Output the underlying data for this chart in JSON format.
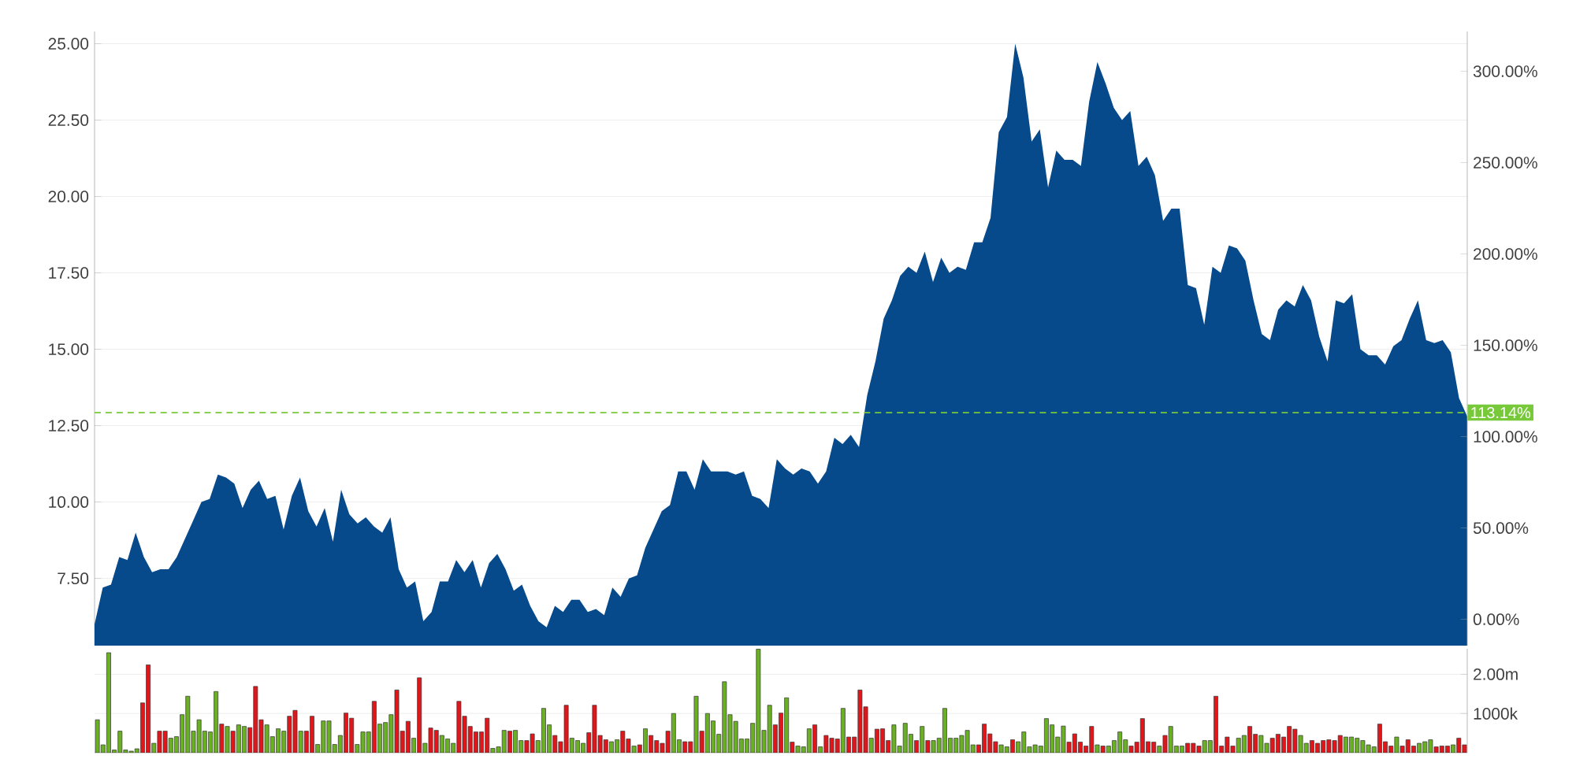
{
  "chart_data": [
    {
      "type": "area",
      "color": "#064a8c",
      "grid": "y",
      "categories": [
        null,
        null,
        null,
        null,
        null,
        null,
        null,
        null,
        null,
        null,
        null,
        null,
        null,
        null,
        null,
        null,
        null,
        null,
        null,
        null,
        null,
        null,
        null,
        null,
        null,
        null,
        null,
        null,
        null,
        null,
        null,
        null,
        null,
        null,
        null,
        null,
        null,
        null,
        null,
        null,
        null,
        null,
        null,
        null,
        null,
        null,
        null,
        null,
        null,
        null,
        null,
        null,
        null,
        null,
        null,
        null,
        null,
        null,
        null,
        null,
        null,
        null,
        null,
        null,
        null,
        null,
        null,
        null,
        null,
        null,
        null,
        null,
        null,
        null,
        null,
        null,
        null,
        null,
        null,
        null,
        null,
        null,
        null,
        null,
        null,
        null,
        null,
        null,
        null,
        null,
        null,
        null,
        null,
        null,
        null,
        null,
        null,
        null,
        null,
        null,
        null,
        null,
        null,
        null,
        null,
        null,
        null,
        null,
        null,
        null,
        null,
        null,
        null,
        null,
        null,
        null,
        null,
        null,
        null,
        null,
        null,
        null,
        null,
        null,
        null,
        null,
        null,
        null,
        null,
        null,
        null,
        null,
        null,
        null,
        null,
        null,
        null,
        null,
        null,
        null,
        null,
        null,
        null,
        null,
        null,
        null,
        null,
        null,
        null,
        null,
        null,
        null,
        null,
        null,
        null,
        null,
        null,
        null,
        null,
        null,
        null,
        null,
        null,
        null,
        null,
        null,
        null,
        null
      ],
      "values": [
        6.0,
        7.2,
        7.3,
        8.2,
        8.1,
        9.0,
        8.2,
        7.7,
        7.8,
        7.8,
        8.2,
        8.8,
        9.4,
        10.0,
        10.1,
        10.9,
        10.8,
        10.6,
        9.8,
        10.4,
        10.7,
        10.1,
        10.2,
        9.1,
        10.2,
        10.8,
        9.7,
        9.2,
        9.8,
        8.7,
        10.4,
        9.6,
        9.3,
        9.5,
        9.2,
        9.0,
        9.5,
        7.8,
        7.2,
        7.4,
        6.1,
        6.4,
        7.4,
        7.4,
        8.1,
        7.7,
        8.1,
        7.2,
        8.0,
        8.3,
        7.8,
        7.1,
        7.3,
        6.6,
        6.1,
        5.9,
        6.6,
        6.4,
        6.8,
        6.8,
        6.4,
        6.5,
        6.3,
        7.2,
        6.9,
        7.5,
        7.6,
        8.5,
        9.1,
        9.7,
        9.9,
        11.0,
        11.0,
        10.4,
        11.4,
        11.0,
        11.0,
        11.0,
        10.9,
        11.0,
        10.2,
        10.1,
        9.8,
        11.4,
        11.1,
        10.9,
        11.1,
        11.0,
        10.6,
        11.0,
        12.1,
        11.9,
        12.2,
        11.8,
        13.5,
        14.6,
        16.0,
        16.6,
        17.4,
        17.7,
        17.5,
        18.2,
        17.2,
        18.0,
        17.5,
        17.7,
        17.6,
        18.5,
        18.5,
        19.3,
        22.1,
        22.6,
        25.0,
        23.9,
        21.8,
        22.2,
        20.3,
        21.5,
        21.2,
        21.2,
        21.0,
        23.1,
        24.4,
        23.7,
        22.9,
        22.5,
        22.8,
        21.0,
        21.3,
        20.7,
        19.2,
        19.6,
        19.6,
        17.1,
        17.0,
        15.8,
        17.7,
        17.5,
        18.4,
        18.3,
        17.9,
        16.6,
        15.5,
        15.3,
        16.3,
        16.6,
        16.4,
        17.1,
        16.6,
        15.4,
        14.6,
        16.6,
        16.5,
        16.8,
        15.0,
        14.8,
        14.8,
        14.5,
        15.1,
        15.3,
        16.0,
        16.6,
        15.3,
        15.2,
        15.3,
        14.9,
        13.4,
        12.8
      ],
      "ylim": [
        5.3,
        25.4
      ],
      "yticks": [
        {
          "value": 7.5,
          "label": "7.50"
        },
        {
          "value": 10,
          "label": "10.00"
        },
        {
          "value": 12.5,
          "label": "12.50"
        },
        {
          "value": 15,
          "label": "15.00"
        },
        {
          "value": 17.5,
          "label": "17.50"
        },
        {
          "value": 20,
          "label": "20.00"
        },
        {
          "value": 22.5,
          "label": "22.50"
        },
        {
          "value": 25,
          "label": "25.00"
        }
      ],
      "y2lim": [
        -14.4,
        321.8
      ],
      "y2ticks": [
        {
          "value": 0,
          "label": "0.00%"
        },
        {
          "value": 50,
          "label": "50.00%"
        },
        {
          "value": 100,
          "label": "100.00%"
        },
        {
          "value": 150,
          "label": "150.00%"
        },
        {
          "value": 200,
          "label": "200.00%"
        },
        {
          "value": 250,
          "label": "250.00%"
        },
        {
          "value": 300,
          "label": "300.00%"
        }
      ],
      "ref_lines": [
        {
          "axis": "y2",
          "value": 113.14,
          "label": "113.14%",
          "color": "#77c93a",
          "line_style": "dashed"
        }
      ]
    },
    {
      "type": "bar",
      "grid": "y",
      "categories": [
        null,
        null,
        null,
        null,
        null,
        null,
        null,
        null,
        null,
        null,
        null,
        null,
        null,
        null,
        null,
        null,
        null,
        null,
        null,
        null,
        null,
        null,
        null,
        null,
        null,
        null,
        null,
        null,
        null,
        null,
        null,
        null,
        null,
        null,
        null,
        null,
        null,
        null,
        null,
        null,
        null,
        null,
        null,
        null,
        null,
        null,
        null,
        null,
        null,
        null,
        null,
        null,
        null,
        null,
        null,
        null,
        null,
        null,
        null,
        null,
        null,
        null,
        null,
        null,
        null,
        null,
        null,
        null,
        null,
        null,
        null,
        null,
        null,
        null,
        null,
        null,
        null,
        null,
        null,
        null,
        null,
        null,
        null,
        null,
        null,
        null,
        null,
        null,
        null,
        null,
        null,
        null,
        null,
        null,
        null,
        null,
        null,
        null,
        null,
        null,
        null,
        null,
        null,
        null,
        null,
        null,
        null,
        null,
        null,
        null,
        null,
        null,
        null,
        null,
        null,
        null,
        null,
        null,
        null,
        null,
        null,
        null,
        null,
        null,
        null,
        null,
        null,
        null,
        null,
        null,
        null,
        null,
        null,
        null,
        null,
        null,
        null,
        null,
        null,
        null,
        null,
        null,
        null,
        null,
        null,
        null,
        null,
        null,
        null,
        null,
        null,
        null,
        null,
        null,
        null,
        null,
        null,
        null,
        null,
        null,
        null,
        null,
        null,
        null,
        null,
        null,
        null,
        null,
        null,
        null,
        null,
        null,
        null,
        null,
        null,
        null,
        null,
        null,
        null,
        null,
        null,
        null,
        null,
        null,
        null,
        null,
        null,
        null,
        null,
        null,
        null,
        null,
        null,
        null,
        null,
        null,
        null,
        null,
        null,
        null,
        null,
        null,
        null,
        null,
        null,
        null,
        null,
        null,
        null,
        null,
        null,
        null,
        null,
        null,
        null,
        null,
        null,
        null,
        null,
        null,
        null,
        null,
        null,
        null,
        null,
        null,
        null,
        null,
        null,
        null,
        null,
        null,
        null,
        null,
        null,
        null,
        null,
        null,
        null,
        null,
        null,
        null,
        null
      ],
      "values": [
        840000,
        200000,
        2550000,
        70000,
        550000,
        70000,
        40000,
        100000,
        1270000,
        2240000,
        240000,
        550000,
        550000,
        370000,
        410000,
        970000,
        1440000,
        550000,
        840000,
        550000,
        530000,
        1560000,
        730000,
        670000,
        550000,
        710000,
        670000,
        640000,
        1690000,
        840000,
        710000,
        410000,
        610000,
        550000,
        930000,
        1080000,
        550000,
        550000,
        930000,
        210000,
        810000,
        810000,
        210000,
        440000,
        1010000,
        880000,
        210000,
        530000,
        530000,
        1310000,
        730000,
        770000,
        970000,
        1600000,
        550000,
        800000,
        370000,
        1910000,
        240000,
        630000,
        570000,
        440000,
        350000,
        240000,
        1310000,
        930000,
        670000,
        530000,
        530000,
        880000,
        110000,
        150000,
        570000,
        550000,
        570000,
        310000,
        310000,
        480000,
        310000,
        1130000,
        710000,
        440000,
        280000,
        1210000,
        370000,
        310000,
        240000,
        510000,
        1210000,
        440000,
        330000,
        280000,
        330000,
        550000,
        350000,
        170000,
        200000,
        610000,
        440000,
        310000,
        240000,
        550000,
        1000000,
        330000,
        280000,
        280000,
        1440000,
        550000,
        1000000,
        810000,
        470000,
        1810000,
        970000,
        800000,
        350000,
        350000,
        750000,
        2640000,
        570000,
        1210000,
        710000,
        1010000,
        1400000,
        270000,
        170000,
        150000,
        610000,
        710000,
        150000,
        440000,
        370000,
        350000,
        1130000,
        400000,
        400000,
        1600000,
        1170000,
        370000,
        600000,
        610000,
        310000,
        710000,
        170000,
        750000,
        470000,
        310000,
        670000,
        310000,
        310000,
        370000,
        1130000,
        370000,
        370000,
        440000,
        570000,
        200000,
        200000,
        730000,
        480000,
        280000,
        200000,
        150000,
        330000,
        280000,
        530000,
        150000,
        200000,
        170000,
        870000,
        710000,
        400000,
        680000,
        270000,
        480000,
        270000,
        170000,
        670000,
        200000,
        170000,
        170000,
        310000,
        530000,
        330000,
        170000,
        270000,
        870000,
        280000,
        270000,
        170000,
        440000,
        670000,
        170000,
        170000,
        240000,
        240000,
        170000,
        310000,
        310000,
        1440000,
        170000,
        400000,
        170000,
        370000,
        440000,
        670000,
        470000,
        440000,
        240000,
        370000,
        470000,
        400000,
        670000,
        600000,
        440000,
        240000,
        310000,
        240000,
        310000,
        330000,
        310000,
        440000,
        400000,
        400000,
        370000,
        310000,
        200000,
        150000,
        730000,
        280000,
        170000,
        400000,
        170000,
        330000,
        170000,
        240000,
        280000,
        330000,
        150000,
        170000,
        170000,
        200000,
        370000,
        200000
      ],
      "colors": [
        "#6ab023",
        "#6ab023",
        "#6ab023",
        "#6ab023",
        "#6ab023",
        "#6ab023",
        "#6ab023",
        "#6ab023",
        "#e0161b",
        "#e0161b",
        "#6ab023",
        "#e0161b",
        "#e0161b",
        "#6ab023",
        "#6ab023",
        "#6ab023",
        "#6ab023",
        "#6ab023",
        "#6ab023",
        "#6ab023",
        "#6ab023",
        "#6ab023",
        "#e0161b",
        "#6ab023",
        "#e0161b",
        "#6ab023",
        "#6ab023",
        "#e0161b",
        "#e0161b",
        "#e0161b",
        "#6ab023",
        "#6ab023",
        "#6ab023",
        "#6ab023",
        "#e0161b",
        "#e0161b",
        "#6ab023",
        "#e0161b",
        "#e0161b",
        "#6ab023",
        "#6ab023",
        "#6ab023",
        "#6ab023",
        "#6ab023",
        "#e0161b",
        "#e0161b",
        "#6ab023",
        "#6ab023",
        "#6ab023",
        "#e0161b",
        "#6ab023",
        "#6ab023",
        "#6ab023",
        "#e0161b",
        "#e0161b",
        "#e0161b",
        "#6ab023",
        "#e0161b",
        "#6ab023",
        "#e0161b",
        "#e0161b",
        "#6ab023",
        "#6ab023",
        "#6ab023",
        "#e0161b",
        "#e0161b",
        "#e0161b",
        "#e0161b",
        "#e0161b",
        "#e0161b",
        "#6ab023",
        "#6ab023",
        "#6ab023",
        "#e0161b",
        "#6ab023",
        "#6ab023",
        "#e0161b",
        "#e0161b",
        "#6ab023",
        "#6ab023",
        "#6ab023",
        "#e0161b",
        "#e0161b",
        "#e0161b",
        "#6ab023",
        "#6ab023",
        "#6ab023",
        "#e0161b",
        "#e0161b",
        "#e0161b",
        "#e0161b",
        "#6ab023",
        "#6ab023",
        "#e0161b",
        "#e0161b",
        "#6ab023",
        "#e0161b",
        "#6ab023",
        "#e0161b",
        "#e0161b",
        "#e0161b",
        "#e0161b",
        "#6ab023",
        "#6ab023",
        "#e0161b",
        "#e0161b",
        "#6ab023",
        "#e0161b",
        "#6ab023",
        "#6ab023",
        "#6ab023",
        "#6ab023",
        "#6ab023",
        "#6ab023",
        "#6ab023",
        "#6ab023",
        "#6ab023",
        "#6ab023",
        "#6ab023",
        "#6ab023",
        "#e0161b",
        "#e0161b",
        "#6ab023",
        "#e0161b",
        "#6ab023",
        "#6ab023",
        "#6ab023",
        "#e0161b",
        "#6ab023",
        "#e0161b",
        "#e0161b",
        "#e0161b",
        "#6ab023",
        "#e0161b",
        "#e0161b",
        "#e0161b",
        "#e0161b",
        "#6ab023",
        "#e0161b",
        "#e0161b",
        "#e0161b",
        "#6ab023",
        "#6ab023",
        "#6ab023",
        "#6ab023",
        "#e0161b",
        "#6ab023",
        "#e0161b",
        "#6ab023",
        "#6ab023",
        "#6ab023",
        "#6ab023",
        "#6ab023",
        "#6ab023",
        "#6ab023",
        "#6ab023",
        "#e0161b",
        "#e0161b",
        "#e0161b",
        "#e0161b",
        "#6ab023",
        "#6ab023",
        "#e0161b",
        "#6ab023",
        "#6ab023",
        "#6ab023",
        "#6ab023",
        "#6ab023",
        "#6ab023",
        "#6ab023",
        "#6ab023",
        "#6ab023",
        "#e0161b",
        "#e0161b",
        "#e0161b",
        "#e0161b",
        "#e0161b",
        "#6ab023",
        "#e0161b",
        "#6ab023",
        "#6ab023",
        "#6ab023",
        "#6ab023",
        "#e0161b",
        "#e0161b",
        "#e0161b",
        "#e0161b",
        "#e0161b",
        "#6ab023",
        "#e0161b",
        "#6ab023",
        "#6ab023",
        "#6ab023",
        "#e0161b",
        "#e0161b",
        "#e0161b",
        "#6ab023",
        "#6ab023",
        "#e0161b",
        "#e0161b",
        "#e0161b",
        "#e0161b",
        "#6ab023",
        "#6ab023",
        "#e0161b",
        "#e0161b",
        "#6ab023",
        "#6ab023",
        "#e0161b",
        "#e0161b",
        "#e0161b",
        "#e0161b",
        "#e0161b",
        "#6ab023",
        "#6ab023",
        "#e0161b",
        "#e0161b",
        "#e0161b",
        "#e0161b",
        "#e0161b",
        "#e0161b",
        "#6ab023",
        "#6ab023",
        "#6ab023",
        "#6ab023",
        "#6ab023",
        "#6ab023",
        "#e0161b",
        "#e0161b",
        "#e0161b",
        "#6ab023",
        "#e0161b",
        "#e0161b",
        "#e0161b",
        "#6ab023",
        "#6ab023",
        "#6ab023",
        "#e0161b",
        "#e0161b",
        "#e0161b",
        "#6ab023",
        "#e0161b",
        "#e0161b"
      ],
      "ylim": [
        0,
        2650000
      ],
      "yticks": [
        {
          "value": 1000000,
          "label": "1000k"
        },
        {
          "value": 2000000,
          "label": "2.00m"
        }
      ]
    }
  ]
}
